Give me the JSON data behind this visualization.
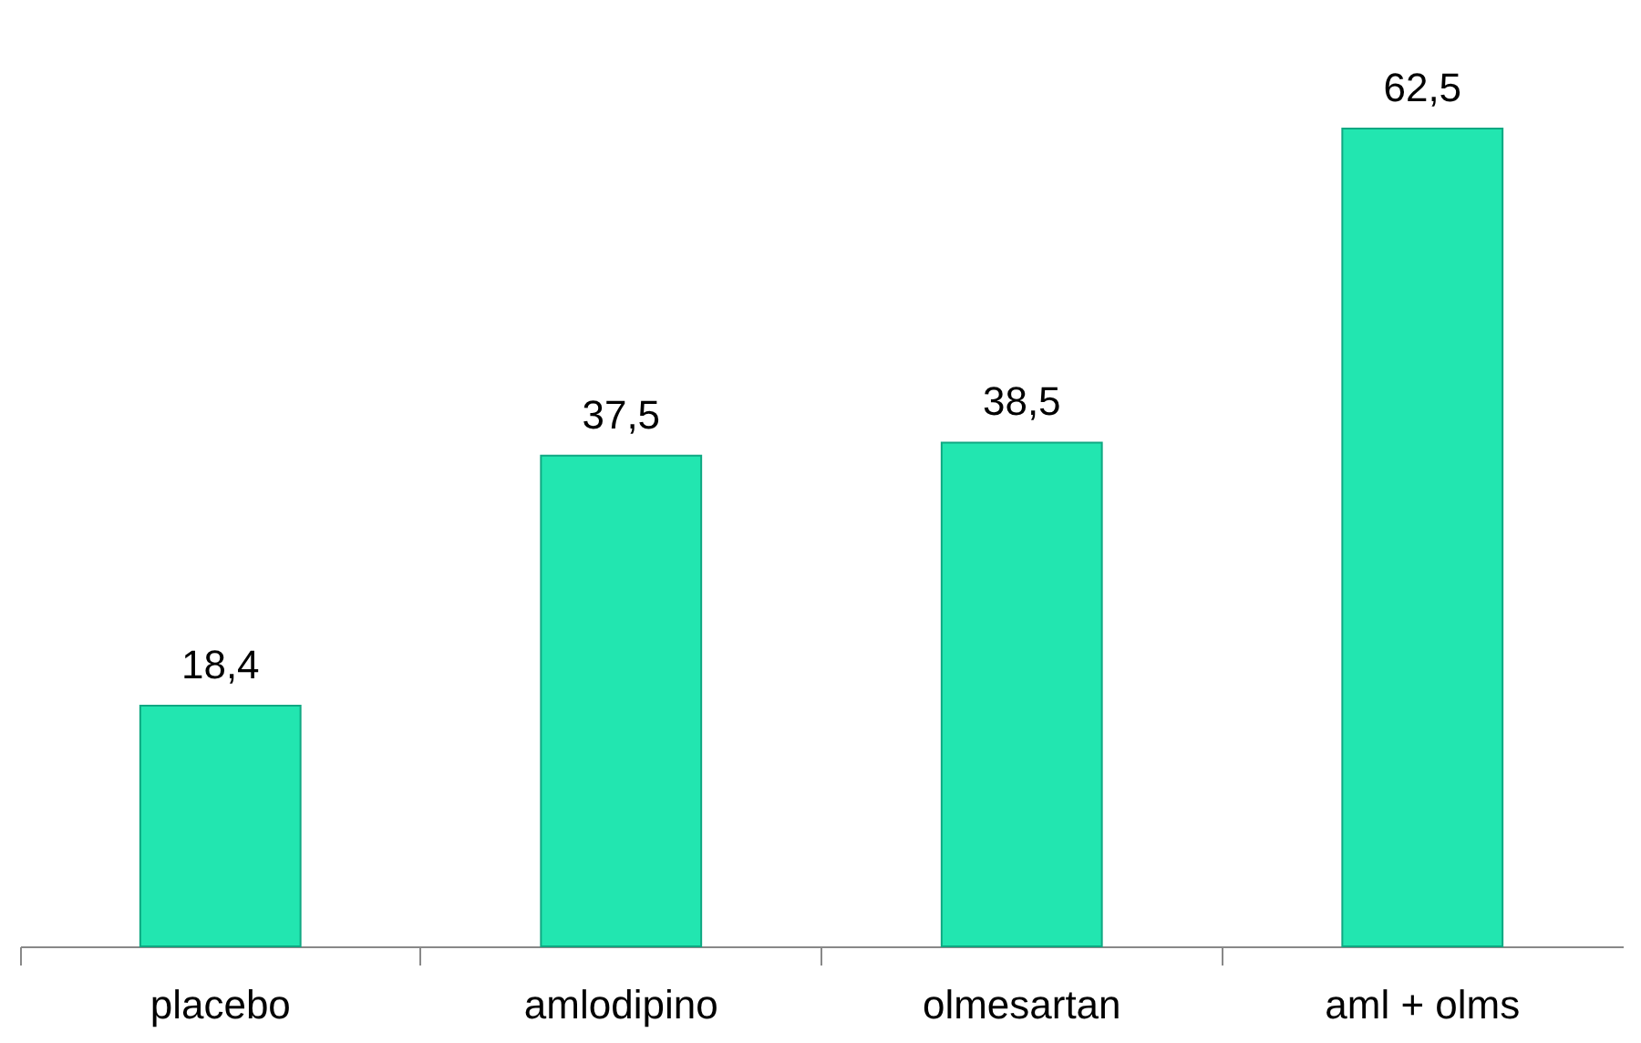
{
  "chart_data": {
    "type": "bar",
    "categories": [
      "placebo",
      "amlodipino",
      "olmesartan",
      "aml + olms"
    ],
    "values": [
      18.4,
      37.5,
      38.5,
      62.5
    ],
    "value_labels": [
      "18,4",
      "37,5",
      "38,5",
      "62,5"
    ],
    "color": "#22e6b0"
  }
}
